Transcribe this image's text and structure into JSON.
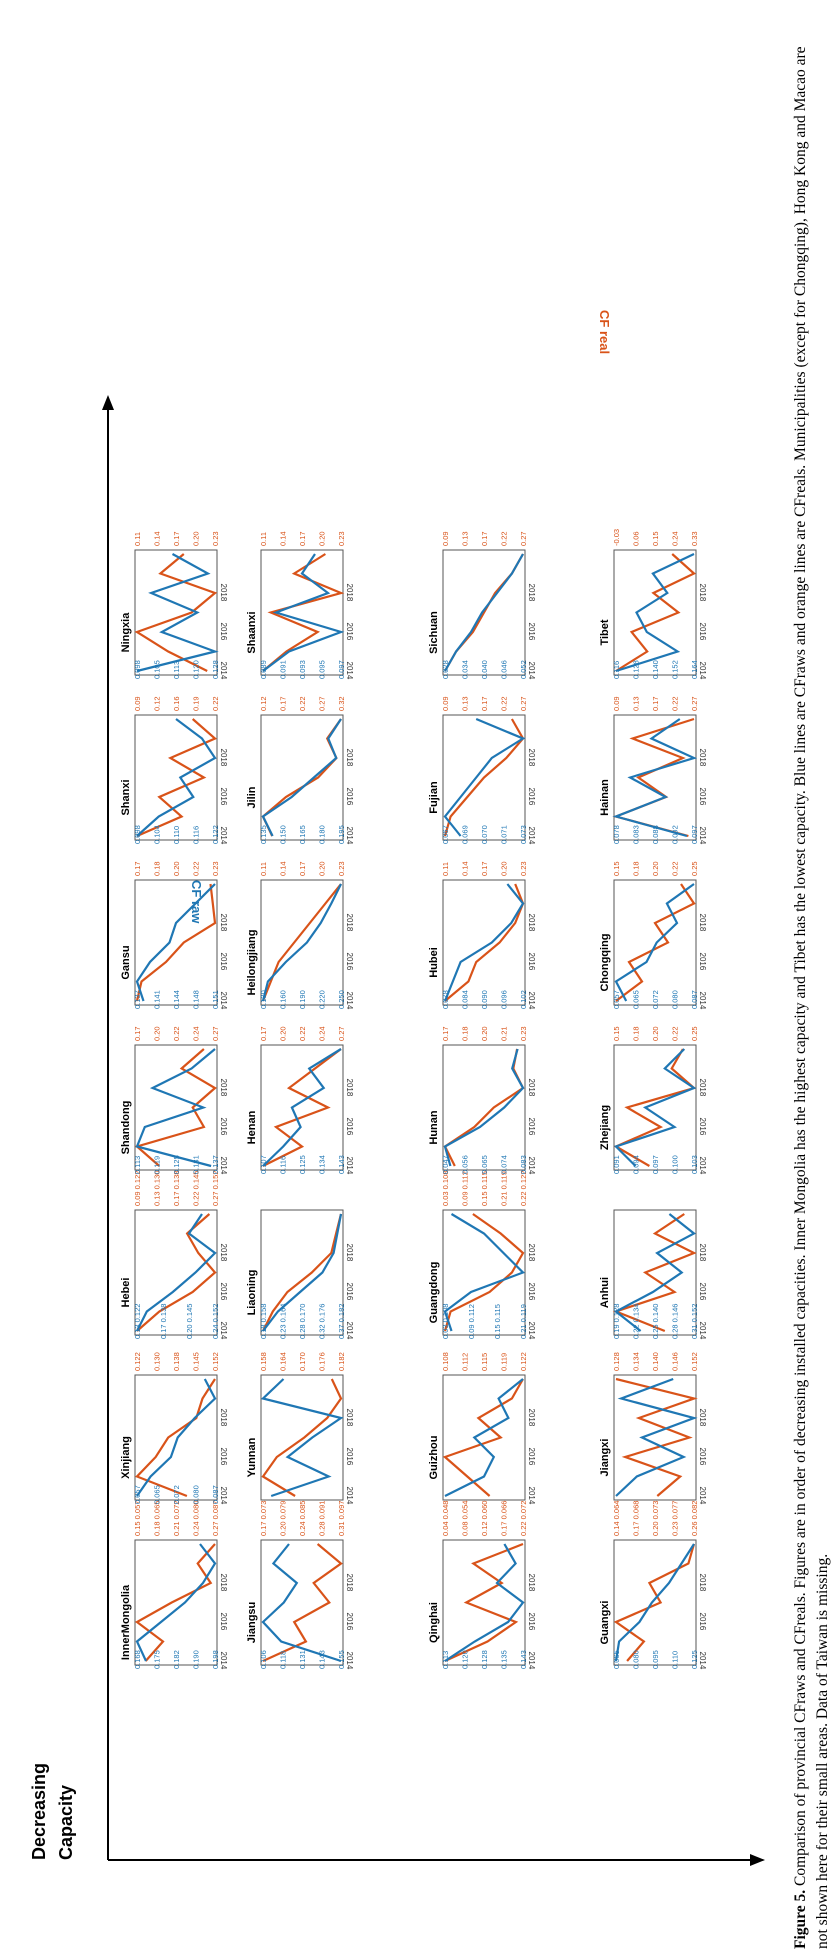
{
  "figure": {
    "arrow_label_line1": "Decreasing",
    "arrow_label_line2": "Capacity",
    "cf_raw_label": "CF raw",
    "cf_real_label": "CF real",
    "caption_label": "Figure 5.",
    "caption_text": "Comparison of provincial CFraws and CFreals. Figures are in order of decreasing installed capacities. Inner Mongolia has the highest capacity and Tibet has the lowest capacity. Blue lines are CFraws and orange lines are CFreals. Municipalities (except for Chongqing), Hong Kong and Macao are not shown here for their small areas. Data of Taiwan is missing."
  },
  "colors": {
    "raw": "#1f77b4",
    "real": "#d95319",
    "axis": "#555555"
  },
  "chart_data": {
    "type": "line",
    "x": [
      "2013",
      "2014",
      "2015",
      "2016",
      "2017",
      "2018",
      "2019"
    ],
    "x_tick_labels": [
      "2014",
      "2016",
      "2018"
    ],
    "panels": [
      {
        "name": "InnerMongolia",
        "raw_ticks": [
          "0.168",
          "0.175",
          "0.182",
          "0.190",
          "0.198"
        ],
        "real_ticks": [
          "0.15 0.057",
          "0.18 0.065",
          "0.21 0.072",
          "0.24 0.080",
          "0.27 0.087"
        ],
        "raw": [
          0.173,
          0.17,
          0.178,
          0.186,
          0.192,
          0.196,
          0.191
        ],
        "real": [
          0.178,
          0.182,
          0.176,
          0.184,
          0.193,
          0.19,
          0.194
        ]
      },
      {
        "name": "Xinjiang",
        "raw_ticks": [],
        "real_ticks": [
          "0.122",
          "0.130",
          "0.138",
          "0.145",
          "0.152"
        ],
        "raw": [
          0.062,
          0.066,
          0.072,
          0.074,
          0.079,
          0.085,
          0.082
        ],
        "real": [
          0.141,
          0.125,
          0.131,
          0.135,
          0.144,
          0.146,
          0.15
        ],
        "raw_ticks_2": [
          "0.057",
          "0.065",
          "0.072",
          "0.080",
          "0.087"
        ]
      },
      {
        "name": "Hebei",
        "raw_ticks": [
          "0.13 0.122",
          "0.17 0.138",
          "0.20 0.145",
          "0.24 0.152"
        ],
        "real_ticks": [
          "0.09 0.122",
          "0.13 0.130",
          "0.17 0.138",
          "0.22 0.145",
          "0.27 0.152"
        ],
        "raw": [
          0.125,
          0.128,
          0.136,
          0.143,
          0.149,
          0.141,
          0.145
        ],
        "real": [
          0.11,
          0.15,
          0.21,
          0.25,
          0.22,
          0.2,
          0.24
        ]
      },
      {
        "name": "Shandong",
        "raw_ticks": [
          "0.113",
          "0.119",
          "0.125",
          "0.131",
          "0.137"
        ],
        "real_ticks": [
          "0.17",
          "0.20",
          "0.22",
          "0.24",
          "0.27"
        ],
        "raw": [
          0.135,
          0.116,
          0.118,
          0.133,
          0.12,
          0.13,
          0.136
        ],
        "real": [
          0.21,
          0.19,
          0.25,
          0.24,
          0.26,
          0.23,
          0.25
        ]
      },
      {
        "name": "Gansu",
        "raw_ticks": [
          "0.137",
          "0.141",
          "0.144",
          "0.148",
          "0.151"
        ],
        "real_ticks": [
          "0.17",
          "0.18",
          "0.20",
          "0.22",
          "0.23"
        ],
        "raw": [
          0.139,
          0.138,
          0.14,
          0.143,
          0.144,
          0.147,
          0.15
        ],
        "real": [
          0.184,
          0.186,
          0.197,
          0.205,
          0.219,
          0.218,
          0.217
        ]
      },
      {
        "name": "Shanxi",
        "raw_ticks": [
          "0.098",
          "0.104",
          "0.110",
          "0.116",
          "0.122"
        ],
        "real_ticks": [
          "0.09",
          "0.12",
          "0.16",
          "0.19",
          "0.22"
        ],
        "raw": [
          0.101,
          0.106,
          0.114,
          0.111,
          0.119,
          0.116,
          0.11
        ],
        "real": [
          0.13,
          0.17,
          0.15,
          0.19,
          0.16,
          0.2,
          0.18
        ]
      },
      {
        "name": "Ningxia",
        "raw_ticks": [
          "0.098",
          "0.105",
          "0.113",
          "0.120",
          "0.128"
        ],
        "real_ticks": [
          "0.11",
          "0.14",
          "0.17",
          "0.20",
          "0.23"
        ],
        "raw": [
          0.101,
          0.123,
          0.108,
          0.118,
          0.105,
          0.121,
          0.111
        ],
        "real": [
          0.21,
          0.16,
          0.12,
          0.19,
          0.22,
          0.15,
          0.18
        ]
      },
      {
        "name": "Jiangsu",
        "raw_ticks": [
          "0.106",
          "0.118",
          "0.131",
          "0.143",
          "0.155"
        ],
        "real_ticks": [
          "0.17 0.073",
          "0.20 0.079",
          "0.24 0.085",
          "0.28 0.091",
          "0.31 0.097"
        ],
        "raw": [
          0.15,
          0.127,
          0.12,
          0.128,
          0.133,
          0.124,
          0.13
        ],
        "real": [
          0.114,
          0.125,
          0.122,
          0.131,
          0.127,
          0.134,
          0.128
        ]
      },
      {
        "name": "Yunnan",
        "raw_ticks": [],
        "real_ticks": [
          "0.158",
          "0.164",
          "0.170",
          "0.176",
          "0.182"
        ],
        "raw": [
          0.077,
          0.091,
          0.081,
          0.087,
          0.094,
          0.075,
          0.08
        ],
        "real": [
          0.17,
          0.163,
          0.166,
          0.172,
          0.177,
          0.18,
          0.178
        ]
      },
      {
        "name": "Liaoning",
        "raw_ticks": [
          "0.18 0.158",
          "0.23 0.164",
          "0.28 0.170",
          "0.32 0.176",
          "0.37 0.182"
        ],
        "real_ticks": [],
        "raw": [
          0.16,
          0.164,
          0.17,
          0.176,
          0.179,
          0.18,
          0.181
        ],
        "real": [
          0.19,
          0.21,
          0.24,
          0.29,
          0.33,
          0.34,
          0.35
        ]
      },
      {
        "name": "Henan",
        "raw_ticks": [
          "0.107",
          "0.116",
          "0.125",
          "0.134",
          "0.143"
        ],
        "real_ticks": [
          "0.17",
          "0.20",
          "0.22",
          "0.24",
          "0.27"
        ],
        "raw": [
          0.111,
          0.118,
          0.124,
          0.121,
          0.132,
          0.127,
          0.138
        ],
        "real": [
          0.2,
          0.23,
          0.21,
          0.25,
          0.22,
          0.24,
          0.26
        ]
      },
      {
        "name": "Heilongjiang",
        "raw_ticks": [
          "0.130",
          "0.160",
          "0.190",
          "0.220",
          "0.250"
        ],
        "real_ticks": [
          "0.11",
          "0.14",
          "0.17",
          "0.20",
          "0.23"
        ],
        "raw": [
          0.15,
          0.156,
          0.178,
          0.204,
          0.221,
          0.234,
          0.246
        ],
        "real": [
          0.12,
          0.13,
          0.14,
          0.16,
          0.18,
          0.2,
          0.22
        ]
      },
      {
        "name": "Jilin",
        "raw_ticks": [
          "0.135",
          "0.150",
          "0.165",
          "0.180",
          "0.195"
        ],
        "real_ticks": [
          "0.12",
          "0.17",
          "0.22",
          "0.27",
          "0.32"
        ],
        "raw": [
          0.146,
          0.14,
          0.158,
          0.172,
          0.186,
          0.181,
          0.189
        ],
        "real": [
          0.15,
          0.13,
          0.18,
          0.25,
          0.29,
          0.27,
          0.3
        ]
      },
      {
        "name": "Shaanxi",
        "raw_ticks": [
          "0.089",
          "0.091",
          "0.093",
          "0.095",
          "0.097"
        ],
        "real_ticks": [
          "0.11",
          "0.14",
          "0.17",
          "0.20",
          "0.23"
        ],
        "raw": [
          0.09,
          0.092,
          0.096,
          0.091,
          0.095,
          0.093,
          0.094
        ],
        "real": [
          0.12,
          0.15,
          0.19,
          0.13,
          0.22,
          0.16,
          0.2
        ]
      },
      {
        "name": "Qinghai",
        "raw_ticks": [
          "0.113",
          "0.120",
          "0.128",
          "0.135",
          "0.143"
        ],
        "real_ticks": [
          "0.04 0.048",
          "0.08 0.054",
          "0.12 0.060",
          "0.17 0.066",
          "0.22 0.072"
        ],
        "raw": [
          0.117,
          0.125,
          0.134,
          0.138,
          0.131,
          0.136,
          0.133
        ],
        "real": [
          0.126,
          0.132,
          0.136,
          0.129,
          0.134,
          0.13,
          0.137
        ]
      },
      {
        "name": "Guizhou",
        "raw_ticks": [],
        "real_ticks": [
          "0.108",
          "0.112",
          "0.115",
          "0.119",
          "0.122"
        ],
        "raw": [
          0.05,
          0.058,
          0.06,
          0.056,
          0.063,
          0.061,
          0.066
        ],
        "real": [
          0.118,
          0.116,
          0.114,
          0.119,
          0.117,
          0.12,
          0.121
        ]
      },
      {
        "name": "Guangdong",
        "raw_ticks": [
          "0.03 0.108",
          "0.09 0.112",
          "0.15 0.115",
          "0.21 0.119"
        ],
        "real_ticks": [
          "0.03 0.108",
          "0.09 0.112",
          "0.15 0.115",
          "0.21 0.119",
          "0.22 0.122"
        ],
        "raw": [
          0.11,
          0.109,
          0.113,
          0.121,
          0.118,
          0.115,
          0.11
        ],
        "real": [
          0.05,
          0.06,
          0.13,
          0.17,
          0.19,
          0.15,
          0.1
        ]
      },
      {
        "name": "Hunan",
        "raw_ticks": [
          "0.047",
          "0.056",
          "0.065",
          "0.074",
          "0.083"
        ],
        "real_ticks": [
          "0.17",
          "0.18",
          "0.20",
          "0.21",
          "0.23"
        ],
        "raw": [
          0.052,
          0.05,
          0.063,
          0.072,
          0.079,
          0.075,
          0.077
        ],
        "real": [
          0.18,
          0.175,
          0.19,
          0.2,
          0.215,
          0.21,
          0.212
        ]
      },
      {
        "name": "Hubei",
        "raw_ticks": [
          "0.078",
          "0.084",
          "0.090",
          "0.096",
          "0.102"
        ],
        "real_ticks": [
          "0.11",
          "0.14",
          "0.17",
          "0.20",
          "0.23"
        ],
        "raw": [
          0.08,
          0.082,
          0.084,
          0.092,
          0.097,
          0.1,
          0.096
        ],
        "real": [
          0.12,
          0.15,
          0.16,
          0.19,
          0.21,
          0.22,
          0.21
        ]
      },
      {
        "name": "Fujian",
        "raw_ticks": [
          "0.067",
          "0.069",
          "0.070",
          "0.071",
          "0.073"
        ],
        "real_ticks": [
          "0.09",
          "0.13",
          "0.17",
          "0.22",
          "0.27"
        ],
        "raw": [
          0.068,
          0.067,
          0.068,
          0.069,
          0.07,
          0.072,
          0.069
        ],
        "real": [
          0.11,
          0.12,
          0.15,
          0.18,
          0.22,
          0.25,
          0.23
        ]
      },
      {
        "name": "Sichuan",
        "raw_ticks": [
          "0.028",
          "0.034",
          "0.040",
          "0.046",
          "0.052"
        ],
        "real_ticks": [
          "0.09",
          "0.13",
          "0.17",
          "0.22",
          "0.27"
        ],
        "raw": [
          0.03,
          0.033,
          0.037,
          0.04,
          0.044,
          0.048,
          0.051
        ],
        "real": [
          0.11,
          0.13,
          0.16,
          0.18,
          0.2,
          0.23,
          0.25
        ]
      },
      {
        "name": "Guangxi",
        "raw_ticks": [
          "0.065",
          "0.080",
          "0.095",
          "0.110",
          "0.125"
        ],
        "real_ticks": [
          "0.14 0.064",
          "0.17 0.068",
          "0.20 0.073",
          "0.23 0.077",
          "0.26 0.082"
        ],
        "raw": [
          0.07,
          0.072,
          0.085,
          0.093,
          0.104,
          0.112,
          0.12
        ],
        "real": [
          0.068,
          0.071,
          0.066,
          0.074,
          0.072,
          0.079,
          0.08
        ]
      },
      {
        "name": "Jiangxi",
        "raw_ticks": [],
        "real_ticks": [
          "0.128",
          "0.134",
          "0.140",
          "0.146",
          "0.152"
        ],
        "raw": [
          0.066,
          0.07,
          0.079,
          0.071,
          0.081,
          0.067,
          0.077
        ],
        "real": [
          0.14,
          0.145,
          0.133,
          0.147,
          0.136,
          0.148,
          0.131
        ]
      },
      {
        "name": "Anhui",
        "raw_ticks": [
          "0.19 0.128",
          "0.22 0.134",
          "0.25 0.140",
          "0.28 0.146",
          "0.31 0.152"
        ],
        "real_ticks": [],
        "raw": [
          0.136,
          0.13,
          0.139,
          0.146,
          0.14,
          0.149,
          0.143
        ],
        "real": [
          0.26,
          0.21,
          0.27,
          0.24,
          0.29,
          0.25,
          0.28
        ]
      },
      {
        "name": "Zhejiang",
        "raw_ticks": [
          "0.091",
          "0.094",
          "0.097",
          "0.100",
          "0.103"
        ],
        "real_ticks": [
          "0.15",
          "0.18",
          "0.20",
          "0.22",
          "0.25"
        ],
        "raw": [
          0.095,
          0.093,
          0.099,
          0.096,
          0.101,
          0.098,
          0.1
        ],
        "real": [
          0.2,
          0.17,
          0.21,
          0.18,
          0.24,
          0.22,
          0.23
        ]
      },
      {
        "name": "Chongqing",
        "raw_ticks": [
          "0.057",
          "0.065",
          "0.072",
          "0.080",
          "0.087"
        ],
        "real_ticks": [
          "0.15",
          "0.18",
          "0.20",
          "0.22",
          "0.25"
        ],
        "raw": [
          0.062,
          0.059,
          0.068,
          0.071,
          0.077,
          0.074,
          0.082
        ],
        "real": [
          0.17,
          0.19,
          0.18,
          0.21,
          0.2,
          0.23,
          0.22
        ]
      },
      {
        "name": "Hainan",
        "raw_ticks": [
          "0.078",
          "0.083",
          "0.088",
          "0.092",
          "0.097"
        ],
        "real_ticks": [
          "0.09",
          "0.13",
          "0.17",
          "0.22",
          "0.27"
        ],
        "raw": [
          0.093,
          0.083,
          0.09,
          0.085,
          0.094,
          0.088,
          0.092
        ],
        "real": [
          0.24,
          0.11,
          0.2,
          0.15,
          0.23,
          0.14,
          0.25
        ]
      },
      {
        "name": "Tibet",
        "raw_ticks": [
          "0.116",
          "0.128",
          "0.140",
          "0.152",
          "0.164"
        ],
        "real_ticks": [
          "-0.03",
          "0.06",
          "0.15",
          "0.24",
          "0.33"
        ],
        "raw": [
          0.12,
          0.15,
          0.135,
          0.13,
          0.145,
          0.138,
          0.158
        ],
        "real": [
          0.0,
          0.1,
          0.05,
          0.2,
          0.12,
          0.25,
          0.18
        ]
      }
    ]
  }
}
